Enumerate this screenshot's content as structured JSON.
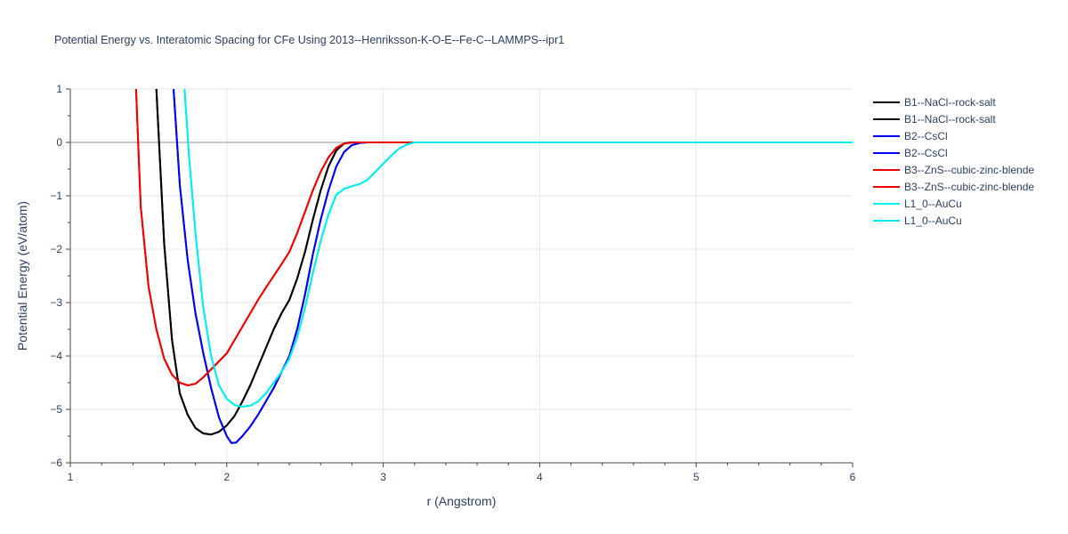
{
  "chart_data": {
    "type": "line",
    "title": "Potential Energy vs. Interatomic Spacing for CFe Using 2013--Henriksson-K-O-E--Fe-C--LAMMPS--ipr1",
    "xlabel": "r (Angstrom)",
    "ylabel": "Potential Energy (eV/atom)",
    "xlim": [
      1,
      6
    ],
    "ylim": [
      -6,
      1
    ],
    "xticks": [
      "1",
      "2",
      "3",
      "4",
      "5",
      "6"
    ],
    "yticks": [
      "1",
      "0",
      "−1",
      "−2",
      "−3",
      "−4",
      "−5",
      "−6"
    ],
    "grid": true,
    "legend_position": "right",
    "series": [
      {
        "name": "B1--NaCl--rock-salt",
        "color": "#000000",
        "x": [
          1.55,
          1.6,
          1.65,
          1.7,
          1.75,
          1.8,
          1.85,
          1.9,
          1.95,
          2.0,
          2.05,
          2.1,
          2.15,
          2.2,
          2.25,
          2.3,
          2.35,
          2.4,
          2.45,
          2.5,
          2.55,
          2.6,
          2.65,
          2.7,
          2.75,
          2.8,
          2.85,
          2.9,
          3.0,
          3.2,
          6.0
        ],
        "y": [
          1.0,
          -1.9,
          -3.7,
          -4.7,
          -5.1,
          -5.35,
          -5.45,
          -5.47,
          -5.42,
          -5.3,
          -5.12,
          -4.85,
          -4.55,
          -4.2,
          -3.85,
          -3.5,
          -3.2,
          -2.95,
          -2.55,
          -2.05,
          -1.45,
          -0.9,
          -0.45,
          -0.15,
          -0.02,
          0.0,
          0.0,
          0.0,
          0.0,
          0.0,
          0.0
        ]
      },
      {
        "name": "B1--NaCl--rock-salt",
        "color": "#000000",
        "x": [
          1.55,
          1.6,
          1.65,
          1.7,
          1.75,
          1.8,
          1.85,
          1.9,
          1.95,
          2.0,
          2.05,
          2.1,
          2.15,
          2.2,
          2.25,
          2.3,
          2.35,
          2.4,
          2.45,
          2.5,
          2.55,
          2.6,
          2.65,
          2.7,
          2.75,
          2.8,
          2.85,
          2.9,
          3.0,
          3.2,
          6.0
        ],
        "y": [
          1.0,
          -1.9,
          -3.7,
          -4.7,
          -5.1,
          -5.35,
          -5.45,
          -5.47,
          -5.42,
          -5.3,
          -5.12,
          -4.85,
          -4.55,
          -4.2,
          -3.85,
          -3.5,
          -3.2,
          -2.95,
          -2.55,
          -2.05,
          -1.45,
          -0.9,
          -0.45,
          -0.15,
          -0.02,
          0.0,
          0.0,
          0.0,
          0.0,
          0.0,
          0.0
        ]
      },
      {
        "name": "B2--CsCl",
        "color": "#0000ee",
        "x": [
          1.66,
          1.7,
          1.75,
          1.8,
          1.85,
          1.9,
          1.95,
          2.0,
          2.03,
          2.06,
          2.1,
          2.15,
          2.2,
          2.25,
          2.3,
          2.35,
          2.4,
          2.45,
          2.5,
          2.55,
          2.6,
          2.65,
          2.7,
          2.75,
          2.8,
          2.85,
          2.9,
          2.95,
          3.0,
          3.2,
          6.0
        ],
        "y": [
          1.0,
          -0.8,
          -2.2,
          -3.2,
          -3.95,
          -4.6,
          -5.15,
          -5.5,
          -5.63,
          -5.62,
          -5.5,
          -5.32,
          -5.1,
          -4.85,
          -4.6,
          -4.3,
          -4.0,
          -3.5,
          -2.85,
          -2.1,
          -1.45,
          -0.9,
          -0.45,
          -0.18,
          -0.05,
          -0.01,
          0.0,
          0.0,
          0.0,
          0.0,
          0.0
        ]
      },
      {
        "name": "B2--CsCl",
        "color": "#0000ee",
        "x": [
          1.66,
          1.7,
          1.75,
          1.8,
          1.85,
          1.9,
          1.95,
          2.0,
          2.03,
          2.06,
          2.1,
          2.15,
          2.2,
          2.25,
          2.3,
          2.35,
          2.4,
          2.45,
          2.5,
          2.55,
          2.6,
          2.65,
          2.7,
          2.75,
          2.8,
          2.85,
          2.9,
          2.95,
          3.0,
          3.2,
          6.0
        ],
        "y": [
          1.0,
          -0.8,
          -2.2,
          -3.2,
          -3.95,
          -4.6,
          -5.15,
          -5.5,
          -5.63,
          -5.62,
          -5.5,
          -5.32,
          -5.1,
          -4.85,
          -4.6,
          -4.3,
          -4.0,
          -3.5,
          -2.85,
          -2.1,
          -1.45,
          -0.9,
          -0.45,
          -0.18,
          -0.05,
          -0.01,
          0.0,
          0.0,
          0.0,
          0.0,
          0.0
        ]
      },
      {
        "name": "B3--ZnS--cubic-zinc-blende",
        "color": "#ee0000",
        "x": [
          1.42,
          1.45,
          1.5,
          1.55,
          1.6,
          1.65,
          1.7,
          1.75,
          1.8,
          1.85,
          1.9,
          1.95,
          2.0,
          2.05,
          2.1,
          2.15,
          2.2,
          2.25,
          2.3,
          2.35,
          2.4,
          2.45,
          2.5,
          2.55,
          2.6,
          2.65,
          2.7,
          2.75,
          2.8,
          2.9,
          3.0,
          3.2,
          6.0
        ],
        "y": [
          1.0,
          -1.2,
          -2.7,
          -3.5,
          -4.05,
          -4.35,
          -4.5,
          -4.55,
          -4.52,
          -4.4,
          -4.25,
          -4.1,
          -3.95,
          -3.7,
          -3.45,
          -3.2,
          -2.95,
          -2.72,
          -2.5,
          -2.28,
          -2.05,
          -1.7,
          -1.3,
          -0.9,
          -0.55,
          -0.28,
          -0.1,
          -0.02,
          0.0,
          0.0,
          0.0,
          0.0,
          0.0
        ]
      },
      {
        "name": "B3--ZnS--cubic-zinc-blende",
        "color": "#ee0000",
        "x": [
          1.42,
          1.45,
          1.5,
          1.55,
          1.6,
          1.65,
          1.7,
          1.75,
          1.8,
          1.85,
          1.9,
          1.95,
          2.0,
          2.05,
          2.1,
          2.15,
          2.2,
          2.25,
          2.3,
          2.35,
          2.4,
          2.45,
          2.5,
          2.55,
          2.6,
          2.65,
          2.7,
          2.75,
          2.8,
          2.9,
          3.0,
          3.2,
          6.0
        ],
        "y": [
          1.0,
          -1.2,
          -2.7,
          -3.5,
          -4.05,
          -4.35,
          -4.5,
          -4.55,
          -4.52,
          -4.4,
          -4.25,
          -4.1,
          -3.95,
          -3.7,
          -3.45,
          -3.2,
          -2.95,
          -2.72,
          -2.5,
          -2.28,
          -2.05,
          -1.7,
          -1.3,
          -0.9,
          -0.55,
          -0.28,
          -0.1,
          -0.02,
          0.0,
          0.0,
          0.0,
          0.0,
          0.0
        ]
      },
      {
        "name": "L1_0--AuCu",
        "color": "#00eeee",
        "x": [
          1.73,
          1.76,
          1.8,
          1.85,
          1.9,
          1.95,
          2.0,
          2.05,
          2.1,
          2.15,
          2.2,
          2.25,
          2.3,
          2.35,
          2.4,
          2.45,
          2.5,
          2.55,
          2.6,
          2.65,
          2.7,
          2.75,
          2.8,
          2.85,
          2.9,
          2.95,
          3.0,
          3.05,
          3.1,
          3.15,
          3.2,
          3.3,
          6.0
        ],
        "y": [
          1.0,
          -0.3,
          -1.7,
          -3.1,
          -4.0,
          -4.55,
          -4.8,
          -4.92,
          -4.95,
          -4.93,
          -4.85,
          -4.7,
          -4.5,
          -4.3,
          -4.05,
          -3.65,
          -3.1,
          -2.45,
          -1.85,
          -1.35,
          -0.98,
          -0.87,
          -0.82,
          -0.78,
          -0.7,
          -0.55,
          -0.4,
          -0.25,
          -0.12,
          -0.04,
          0.0,
          0.0,
          0.0
        ]
      },
      {
        "name": "L1_0--AuCu",
        "color": "#00eeee",
        "x": [
          1.73,
          1.76,
          1.8,
          1.85,
          1.9,
          1.95,
          2.0,
          2.05,
          2.1,
          2.15,
          2.2,
          2.25,
          2.3,
          2.35,
          2.4,
          2.45,
          2.5,
          2.55,
          2.6,
          2.65,
          2.7,
          2.75,
          2.8,
          2.85,
          2.9,
          2.95,
          3.0,
          3.05,
          3.1,
          3.15,
          3.2,
          3.3,
          6.0
        ],
        "y": [
          1.0,
          -0.3,
          -1.7,
          -3.1,
          -4.0,
          -4.55,
          -4.8,
          -4.92,
          -4.95,
          -4.93,
          -4.85,
          -4.7,
          -4.5,
          -4.3,
          -4.05,
          -3.65,
          -3.1,
          -2.45,
          -1.85,
          -1.35,
          -0.98,
          -0.87,
          -0.82,
          -0.78,
          -0.7,
          -0.55,
          -0.4,
          -0.25,
          -0.12,
          -0.04,
          0.0,
          0.0,
          0.0
        ]
      }
    ]
  }
}
